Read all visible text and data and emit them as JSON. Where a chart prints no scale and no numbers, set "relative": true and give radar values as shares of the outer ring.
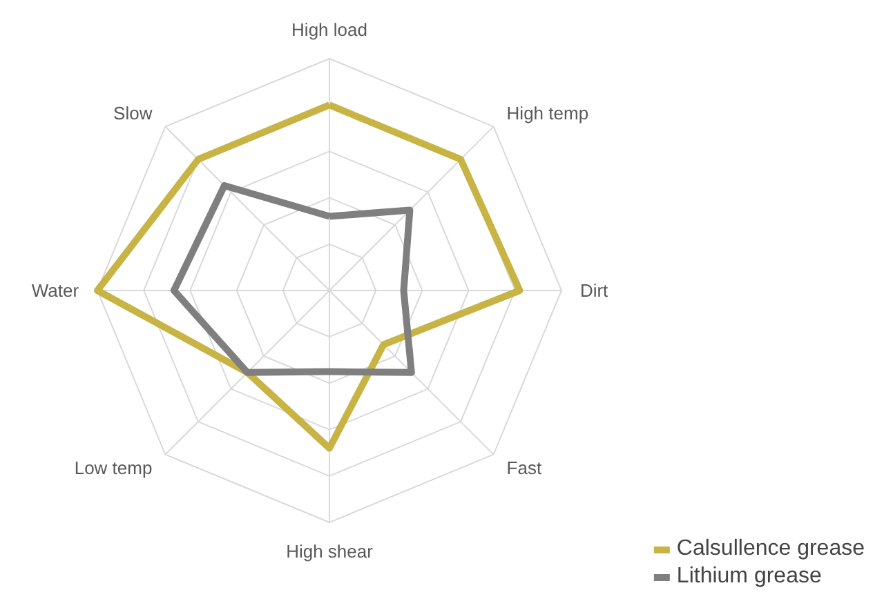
{
  "chart_data": {
    "type": "radar",
    "relative": true,
    "grid": true,
    "legend": "bottom right",
    "marker": "none",
    "line_style": "solid",
    "categories": [
      "High load",
      "High temp",
      "Dirt",
      "Fast",
      "High shear",
      "Low temp",
      "Water",
      "Slow"
    ],
    "series": [
      {
        "name": "Calsullence grease",
        "color": "#c8b445",
        "values": [
          0.8,
          0.8,
          0.82,
          0.33,
          0.68,
          0.5,
          1.0,
          0.8
        ]
      },
      {
        "name": "Lithium grease",
        "color": "#7f7f7f",
        "values": [
          0.32,
          0.49,
          0.32,
          0.5,
          0.35,
          0.5,
          0.67,
          0.64
        ]
      }
    ]
  }
}
